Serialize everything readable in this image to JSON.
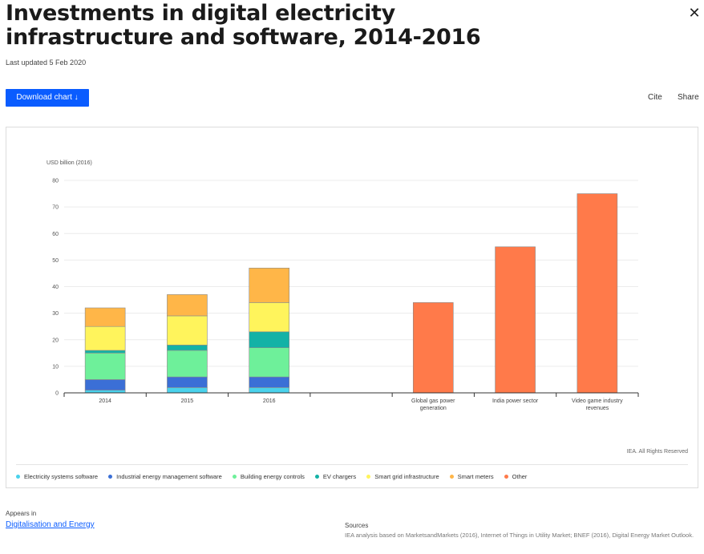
{
  "page": {
    "title": "Investments in digital electricity infrastructure and software, 2014-2016",
    "last_updated": "Last updated 5 Feb 2020",
    "download_label": "Download chart ↓",
    "cite_label": "Cite",
    "share_label": "Share",
    "close_glyph": "✕",
    "rights": "IEA. All Rights Reserved",
    "appears_in_label": "Appears in",
    "appears_in_link": "Digitalisation and Energy",
    "sources_label": "Sources",
    "sources_text": "IEA analysis based on MarketsandMarkets (2016), Internet of Things in Utility Market; BNEF (2016), Digital Energy Market Outlook."
  },
  "colors": {
    "brand": "#0a5cff",
    "Electricity systems software": "#4ad2ec",
    "Industrial energy management software": "#3b6fd6",
    "Building energy controls": "#6ef09a",
    "EV chargers": "#13b2a6",
    "Smart grid infrastructure": "#fff45c",
    "Smart meters": "#ffb648",
    "Other": "#ff7a4a"
  },
  "chart_data": {
    "type": "bar",
    "stacked": true,
    "ylabel": "USD billion (2016)",
    "ylim": [
      0,
      80
    ],
    "yticks": [
      0,
      10,
      20,
      30,
      40,
      50,
      60,
      70,
      80
    ],
    "grid": true,
    "legend_position": "bottom",
    "categories": [
      "2014",
      "2015",
      "2016",
      "",
      "Global gas power generation",
      "India power sector",
      "Video game industry revenues"
    ],
    "series": [
      {
        "name": "Electricity systems software",
        "values": [
          1,
          2,
          2,
          0,
          0,
          0,
          0
        ]
      },
      {
        "name": "Industrial energy management software",
        "values": [
          4,
          4,
          4,
          0,
          0,
          0,
          0
        ]
      },
      {
        "name": "Building energy controls",
        "values": [
          10,
          10,
          11,
          0,
          0,
          0,
          0
        ]
      },
      {
        "name": "EV chargers",
        "values": [
          1,
          2,
          6,
          0,
          0,
          0,
          0
        ]
      },
      {
        "name": "Smart grid infrastructure",
        "values": [
          9,
          11,
          11,
          0,
          0,
          0,
          0
        ]
      },
      {
        "name": "Smart meters",
        "values": [
          7,
          8,
          13,
          0,
          0,
          0,
          0
        ]
      },
      {
        "name": "Other",
        "values": [
          0,
          0,
          0,
          0,
          34,
          55,
          75
        ]
      }
    ]
  }
}
